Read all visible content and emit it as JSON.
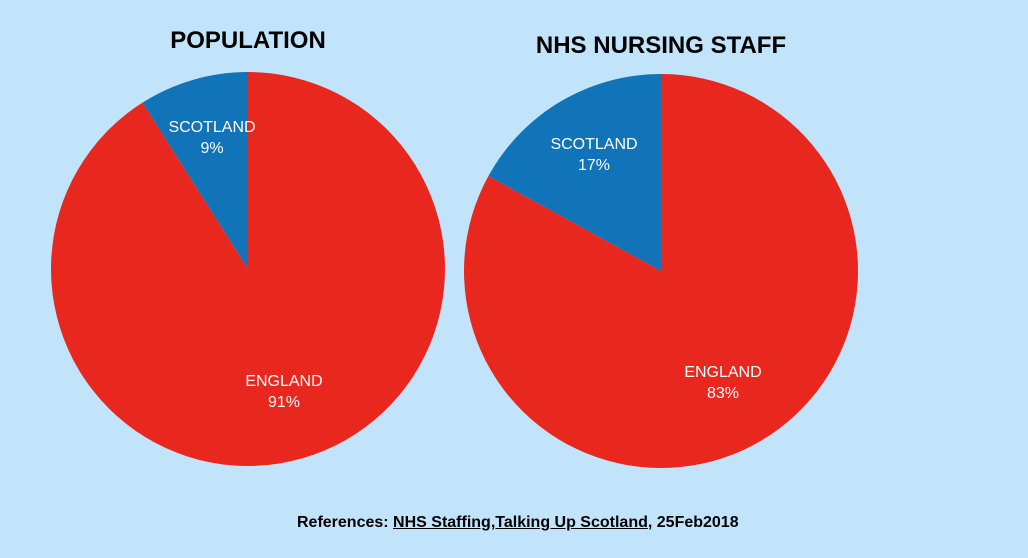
{
  "colors": {
    "background": "#c2e4fb",
    "england": "#e8281f",
    "scotland": "#1173b8",
    "label": "#ffffff"
  },
  "chart_data": [
    {
      "type": "pie",
      "title": "POPULATION",
      "categories": [
        "SCOTLAND",
        "ENGLAND"
      ],
      "values": [
        9,
        91
      ],
      "value_labels": [
        "9%",
        "91%"
      ],
      "colors": [
        "#1173b8",
        "#e8281f"
      ]
    },
    {
      "type": "pie",
      "title": "NHS NURSING STAFF",
      "categories": [
        "SCOTLAND",
        "ENGLAND"
      ],
      "values": [
        17,
        83
      ],
      "value_labels": [
        "17%",
        "83%"
      ],
      "colors": [
        "#1173b8",
        "#e8281f"
      ]
    }
  ],
  "footer": {
    "prefix": "References: ",
    "link_text": "NHS Staffing,Talking Up Scotland",
    "suffix": ", 25Feb2018"
  }
}
